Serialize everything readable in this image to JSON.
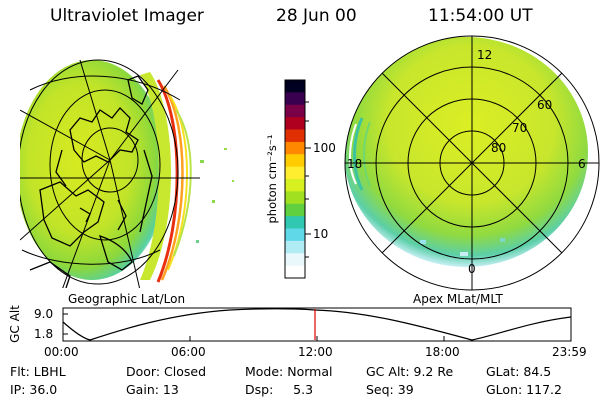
{
  "header": {
    "instrument": "Ultraviolet Imager",
    "date": "28 Jun 00",
    "time": "11:54:00 UT"
  },
  "left_panel": {
    "caption": "Geographic Lat/Lon"
  },
  "right_panel": {
    "caption": "Apex  MLat/MLT",
    "mlt_labels": [
      "12",
      "18",
      "6",
      "0"
    ],
    "mlat_labels": [
      "60",
      "70",
      "80"
    ]
  },
  "colorbar": {
    "unit_label": "photon cm⁻²s⁻¹",
    "tick_labels": [
      "100",
      "10"
    ],
    "colors": [
      "#000020",
      "#3a0050",
      "#7a0048",
      "#b00020",
      "#e03000",
      "#ff8800",
      "#ffcc00",
      "#ffee30",
      "#d6f020",
      "#a0e020",
      "#60d040",
      "#30c8b0",
      "#60d8e8",
      "#b0ecf4",
      "#e8f8fb",
      "#ffffff"
    ]
  },
  "gc_alt_plot": {
    "ylabel": "GC Alt",
    "yticks": [
      "9.0",
      "1.8"
    ],
    "xticks": [
      "00:00",
      "06:00",
      "12:00",
      "18:00",
      "23:59"
    ],
    "current_time_fraction": 0.496
  },
  "info": {
    "row1": {
      "filter": "Flt: LBHL",
      "door": "Door: Closed",
      "mode": "Mode: Normal",
      "gc_alt": "GC Alt: 9.2 Re",
      "glat": "GLat:  84.5"
    },
    "row2": {
      "ip": "IP: 36.0",
      "gain": "Gain: 13",
      "dsp": "Dsp:     5.3",
      "seq": "Seq: 39",
      "glon": "GLon: 117.2"
    }
  }
}
